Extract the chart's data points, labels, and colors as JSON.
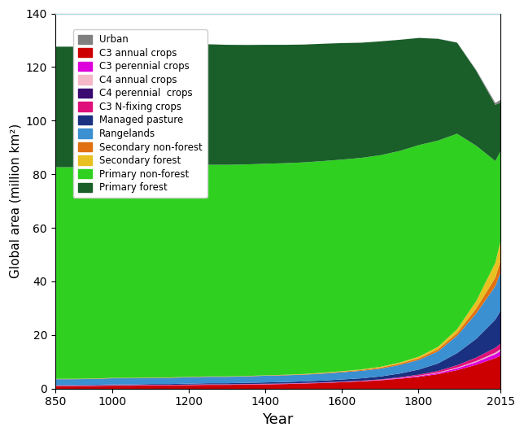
{
  "title": "",
  "xlabel": "Year",
  "ylabel": "Global area (million km²)",
  "xlim": [
    850,
    2015
  ],
  "ylim": [
    0,
    140
  ],
  "yticks": [
    0,
    20,
    40,
    60,
    80,
    100,
    120,
    140
  ],
  "xticks": [
    850,
    1000,
    1200,
    1400,
    1600,
    1800,
    2015
  ],
  "stack_layers": [
    {
      "name": "C3 annual crops",
      "color": "#cc0000"
    },
    {
      "name": "C3 perennial crops",
      "color": "#dd00dd"
    },
    {
      "name": "C4 annual crops",
      "color": "#f5b8c8"
    },
    {
      "name": "C4 perennial  crops",
      "color": "#3a0a70"
    },
    {
      "name": "C3 N-fixing crops",
      "color": "#e0107a"
    },
    {
      "name": "Managed pasture",
      "color": "#1a3080"
    },
    {
      "name": "Rangelands",
      "color": "#3a90d0"
    },
    {
      "name": "Secondary non-forest",
      "color": "#e07010"
    },
    {
      "name": "Secondary forest",
      "color": "#e8c020"
    },
    {
      "name": "Primary non-forest",
      "color": "#30d020"
    },
    {
      "name": "Primary forest",
      "color": "#1a5e2a"
    },
    {
      "name": "Urban",
      "color": "#808080"
    }
  ],
  "legend_order_names": [
    "Urban",
    "C3 annual crops",
    "C3 perennial crops",
    "C4 annual crops",
    "C4 perennial  crops",
    "C3 N-fixing crops",
    "Managed pasture",
    "Rangelands",
    "Secondary non-forest",
    "Secondary forest",
    "Primary non-forest",
    "Primary forest"
  ],
  "years": [
    850,
    900,
    950,
    1000,
    1050,
    1100,
    1150,
    1200,
    1250,
    1300,
    1350,
    1400,
    1450,
    1500,
    1550,
    1600,
    1650,
    1700,
    1750,
    1800,
    1850,
    1900,
    1950,
    2000,
    2015
  ],
  "data": {
    "C3 annual crops": [
      1.0,
      1.0,
      1.1,
      1.2,
      1.2,
      1.3,
      1.3,
      1.4,
      1.5,
      1.5,
      1.6,
      1.7,
      1.8,
      2.0,
      2.2,
      2.5,
      2.8,
      3.2,
      3.8,
      4.5,
      5.5,
      7.0,
      9.0,
      11.5,
      12.5
    ],
    "C3 perennial crops": [
      0.08,
      0.08,
      0.08,
      0.08,
      0.08,
      0.08,
      0.08,
      0.08,
      0.08,
      0.08,
      0.08,
      0.08,
      0.08,
      0.08,
      0.08,
      0.08,
      0.1,
      0.15,
      0.2,
      0.3,
      0.4,
      0.7,
      1.0,
      1.5,
      1.8
    ],
    "C4 annual crops": [
      0.05,
      0.05,
      0.05,
      0.05,
      0.05,
      0.05,
      0.05,
      0.05,
      0.05,
      0.05,
      0.05,
      0.05,
      0.05,
      0.05,
      0.05,
      0.05,
      0.05,
      0.05,
      0.08,
      0.12,
      0.18,
      0.25,
      0.35,
      0.5,
      0.6
    ],
    "C4 perennial  crops": [
      0.01,
      0.01,
      0.01,
      0.01,
      0.01,
      0.01,
      0.01,
      0.01,
      0.01,
      0.01,
      0.01,
      0.01,
      0.01,
      0.01,
      0.01,
      0.01,
      0.01,
      0.01,
      0.01,
      0.01,
      0.02,
      0.02,
      0.04,
      0.08,
      0.12
    ],
    "C3 N-fixing crops": [
      0.08,
      0.08,
      0.08,
      0.08,
      0.08,
      0.08,
      0.08,
      0.08,
      0.08,
      0.08,
      0.08,
      0.08,
      0.08,
      0.08,
      0.08,
      0.08,
      0.1,
      0.15,
      0.25,
      0.4,
      0.6,
      0.9,
      1.3,
      1.8,
      2.0
    ],
    "Managed pasture": [
      0.2,
      0.2,
      0.2,
      0.25,
      0.25,
      0.3,
      0.3,
      0.35,
      0.4,
      0.4,
      0.45,
      0.5,
      0.55,
      0.6,
      0.7,
      0.8,
      0.9,
      1.1,
      1.4,
      1.9,
      2.8,
      4.5,
      7.0,
      10.5,
      12.5
    ],
    "Rangelands": [
      2.2,
      2.2,
      2.2,
      2.3,
      2.3,
      2.3,
      2.3,
      2.4,
      2.4,
      2.4,
      2.4,
      2.5,
      2.5,
      2.5,
      2.6,
      2.7,
      2.8,
      2.9,
      3.2,
      3.6,
      4.5,
      6.5,
      9.5,
      12.5,
      14.5
    ],
    "Secondary non-forest": [
      0.1,
      0.1,
      0.1,
      0.1,
      0.1,
      0.1,
      0.1,
      0.1,
      0.1,
      0.1,
      0.1,
      0.1,
      0.15,
      0.15,
      0.2,
      0.25,
      0.3,
      0.4,
      0.5,
      0.6,
      0.8,
      1.0,
      1.8,
      3.2,
      4.5
    ],
    "Secondary forest": [
      0.05,
      0.05,
      0.05,
      0.05,
      0.05,
      0.05,
      0.05,
      0.05,
      0.05,
      0.05,
      0.05,
      0.05,
      0.05,
      0.1,
      0.15,
      0.15,
      0.2,
      0.3,
      0.4,
      0.6,
      0.9,
      1.4,
      2.8,
      5.5,
      7.5
    ],
    "Primary non-forest": [
      79.0,
      79.0,
      79.0,
      79.0,
      79.0,
      79.0,
      79.0,
      79.0,
      79.0,
      79.0,
      79.0,
      79.0,
      79.0,
      79.0,
      79.0,
      79.0,
      79.0,
      79.0,
      79.0,
      79.0,
      77.0,
      73.0,
      58.0,
      38.0,
      33.0
    ],
    "Primary forest": [
      45.0,
      45.0,
      45.0,
      45.0,
      45.0,
      45.0,
      45.0,
      45.0,
      45.0,
      44.8,
      44.6,
      44.4,
      44.2,
      44.0,
      43.8,
      43.5,
      43.0,
      42.5,
      41.5,
      40.0,
      38.0,
      34.0,
      28.0,
      21.0,
      18.0
    ],
    "Urban": [
      0.0,
      0.0,
      0.0,
      0.0,
      0.0,
      0.0,
      0.0,
      0.0,
      0.0,
      0.0,
      0.0,
      0.0,
      0.0,
      0.0,
      0.0,
      0.0,
      0.0,
      0.0,
      0.01,
      0.02,
      0.05,
      0.1,
      0.3,
      0.7,
      1.0
    ]
  },
  "background_color": "#ffffff"
}
